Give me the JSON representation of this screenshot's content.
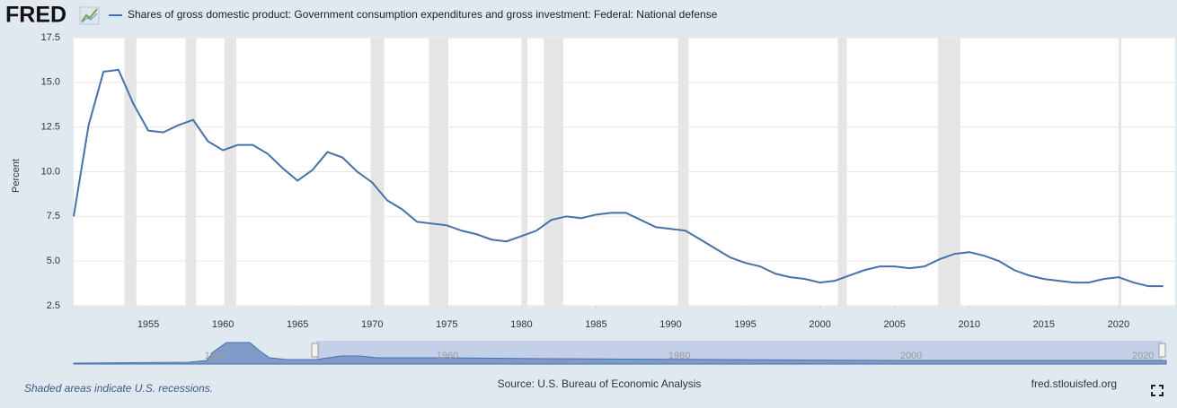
{
  "chart_data": {
    "type": "line",
    "logo": "FRED",
    "ylabel": "Percent",
    "footnote": "Shaded areas indicate U.S. recessions.",
    "source": "Source: U.S. Bureau of Economic Analysis",
    "site": "fred.stlouisfed.org",
    "x": [
      1950,
      1951,
      1952,
      1953,
      1954,
      1955,
      1956,
      1957,
      1958,
      1959,
      1960,
      1961,
      1962,
      1963,
      1964,
      1965,
      1966,
      1967,
      1968,
      1969,
      1970,
      1971,
      1972,
      1973,
      1974,
      1975,
      1976,
      1977,
      1978,
      1979,
      1980,
      1981,
      1982,
      1983,
      1984,
      1985,
      1986,
      1987,
      1988,
      1989,
      1990,
      1991,
      1992,
      1993,
      1994,
      1995,
      1996,
      1997,
      1998,
      1999,
      2000,
      2001,
      2002,
      2003,
      2004,
      2005,
      2006,
      2007,
      2008,
      2009,
      2010,
      2011,
      2012,
      2013,
      2014,
      2015,
      2016,
      2017,
      2018,
      2019,
      2020,
      2021,
      2022,
      2023
    ],
    "series": [
      {
        "name": "Shares of gross domestic product: Government consumption expenditures and gross investment: Federal: National defense",
        "color": "#4572a7",
        "values": [
          7.5,
          12.6,
          15.6,
          15.7,
          13.8,
          12.3,
          12.2,
          12.6,
          12.9,
          11.7,
          11.2,
          11.5,
          11.5,
          11.0,
          10.2,
          9.5,
          10.1,
          11.1,
          10.8,
          10.0,
          9.4,
          8.4,
          7.9,
          7.2,
          7.1,
          7.0,
          6.7,
          6.5,
          6.2,
          6.1,
          6.4,
          6.7,
          7.3,
          7.5,
          7.4,
          7.6,
          7.7,
          7.7,
          7.3,
          6.9,
          6.8,
          6.7,
          6.2,
          5.7,
          5.2,
          4.9,
          4.7,
          4.3,
          4.1,
          4.0,
          3.8,
          3.9,
          4.2,
          4.5,
          4.7,
          4.7,
          4.6,
          4.7,
          5.1,
          5.4,
          5.5,
          5.3,
          5.0,
          4.5,
          4.2,
          4.0,
          3.9,
          3.8,
          3.8,
          4.0,
          4.1,
          3.8,
          3.6,
          3.6
        ]
      }
    ],
    "recessions": [
      [
        1953.4,
        1954.2
      ],
      [
        1957.5,
        1958.2
      ],
      [
        1960.1,
        1960.9
      ],
      [
        1969.9,
        1970.8
      ],
      [
        1973.8,
        1975.1
      ],
      [
        1980.0,
        1980.4
      ],
      [
        1981.5,
        1982.8
      ],
      [
        1990.5,
        1991.2
      ],
      [
        2001.2,
        2001.8
      ],
      [
        2007.9,
        2009.4
      ],
      [
        2020.0,
        2020.2
      ]
    ],
    "recession_color": "#e5e5e5",
    "xlim": [
      1950,
      2023.8
    ],
    "ylim": [
      2.5,
      17.5
    ],
    "xticks": [
      1955,
      1960,
      1965,
      1970,
      1975,
      1980,
      1985,
      1990,
      1995,
      2000,
      2005,
      2010,
      2015,
      2020
    ],
    "yticks": [
      2.5,
      {
        "value": 5,
        "label": "5.0"
      },
      7.5,
      {
        "value": 10,
        "label": "10.0"
      },
      12.5,
      {
        "value": 15,
        "label": "15.0"
      },
      17.5
    ],
    "grid": true,
    "navigator": {
      "xlim": [
        1927.75,
        2022.0
      ],
      "xticks": [
        1940,
        1960,
        1980,
        2000,
        2020
      ]
    }
  }
}
